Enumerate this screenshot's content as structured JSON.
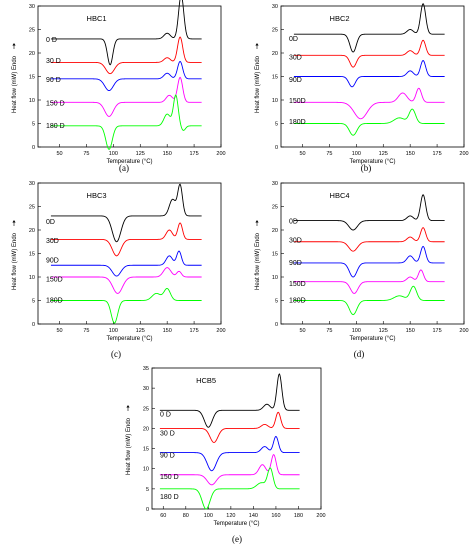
{
  "chart_data": [
    {
      "type": "line",
      "caption": "(a)",
      "title": "HBC1",
      "xlabel": "Temperature (°C)",
      "ylabel": "Heat flow (mW) Endo",
      "xlim": [
        30,
        200
      ],
      "ylim": [
        0,
        30
      ],
      "xticks": [
        "50",
        "75",
        "100",
        "125",
        "150",
        "175",
        "200"
      ],
      "yticks": [
        "0",
        "5",
        "10",
        "15",
        "20",
        "25",
        "30"
      ],
      "series": [
        {
          "name": "0 D",
          "color": "#000000",
          "label_y": 22.8,
          "baseline": 23,
          "peaks": [
            [
              97,
              -5.5,
              2.5
            ],
            [
              150,
              1.2,
              3
            ],
            [
              163,
              9.3,
              2.4
            ]
          ],
          "xrange": [
            42,
            182
          ]
        },
        {
          "name": "30 D",
          "color": "#ff0000",
          "label_y": 18.3,
          "baseline": 18,
          "peaks": [
            [
              97,
              -2.4,
              4
            ],
            [
              150,
              1.0,
              3
            ],
            [
              162,
              5.4,
              2.4
            ]
          ],
          "xrange": [
            42,
            182
          ]
        },
        {
          "name": "90 D",
          "color": "#0000ff",
          "label_y": 14.3,
          "baseline": 14.5,
          "peaks": [
            [
              96,
              -2.5,
              4
            ],
            [
              150,
              1.2,
              3
            ],
            [
              162,
              3.7,
              2.4
            ]
          ],
          "xrange": [
            42,
            182
          ]
        },
        {
          "name": "150 D",
          "color": "#ff00ff",
          "label_y": 9.3,
          "baseline": 9.5,
          "peaks": [
            [
              96,
              -3,
              4
            ],
            [
              152,
              1.5,
              3
            ],
            [
              162,
              5.3,
              2.4
            ]
          ],
          "xrange": [
            42,
            182
          ]
        },
        {
          "name": "180 D",
          "color": "#00ff00",
          "label_y": 4.5,
          "baseline": 4.5,
          "peaks": [
            [
              96,
              -5,
              3
            ],
            [
              150,
              2.5,
              3
            ],
            [
              158,
              6.5,
              2.2
            ],
            [
              165,
              -1,
              2
            ]
          ],
          "xrange": [
            42,
            182
          ]
        }
      ]
    },
    {
      "type": "line",
      "caption": "(b)",
      "title": "HBC2",
      "xlabel": "Temperature (°C)",
      "ylabel": "Heat flow (mW) Endo",
      "xlim": [
        30,
        200
      ],
      "ylim": [
        0,
        30
      ],
      "xticks": [
        "50",
        "75",
        "100",
        "125",
        "150",
        "175",
        "200"
      ],
      "yticks": [
        "0",
        "5",
        "10",
        "15",
        "20",
        "25",
        "30"
      ],
      "series": [
        {
          "name": "0D",
          "color": "#000000",
          "label_y": 23,
          "baseline": 24,
          "peaks": [
            [
              97,
              -3.8,
              3
            ],
            [
              150,
              1.0,
              3
            ],
            [
              162,
              6.5,
              2.4
            ]
          ],
          "xrange": [
            42,
            182
          ]
        },
        {
          "name": "30D",
          "color": "#ff0000",
          "label_y": 19,
          "baseline": 19.5,
          "peaks": [
            [
              97,
              -2.5,
              3
            ],
            [
              150,
              1.0,
              3
            ],
            [
              162,
              3.2,
              2.4
            ]
          ],
          "xrange": [
            42,
            182
          ]
        },
        {
          "name": "90D",
          "color": "#0000ff",
          "label_y": 14.3,
          "baseline": 15,
          "peaks": [
            [
              96,
              -2.2,
              3
            ],
            [
              150,
              1.2,
              3
            ],
            [
              162,
              3.4,
              2.4
            ]
          ],
          "xrange": [
            42,
            182
          ]
        },
        {
          "name": "150D",
          "color": "#ff00ff",
          "label_y": 9.8,
          "baseline": 9.5,
          "peaks": [
            [
              104,
              -3.5,
              6
            ],
            [
              143,
              2.0,
              4
            ],
            [
              158,
              3.0,
              2.5
            ]
          ],
          "xrange": [
            42,
            182
          ]
        },
        {
          "name": "180D",
          "color": "#00ff00",
          "label_y": 5.3,
          "baseline": 5,
          "peaks": [
            [
              97,
              -2.5,
              3.5
            ],
            [
              140,
              1.2,
              5
            ],
            [
              152,
              3.0,
              3
            ]
          ],
          "xrange": [
            42,
            182
          ]
        }
      ]
    },
    {
      "type": "line",
      "caption": "(c)",
      "title": "HBC3",
      "xlabel": "Temperature (°C)",
      "ylabel": "Heat flow (mW) Endo",
      "xlim": [
        30,
        200
      ],
      "ylim": [
        0,
        30
      ],
      "xticks": [
        "50",
        "75",
        "100",
        "125",
        "150",
        "175",
        "200"
      ],
      "yticks": [
        "0",
        "5",
        "10",
        "15",
        "20",
        "25",
        "30"
      ],
      "series": [
        {
          "name": "0D",
          "color": "#000000",
          "label_y": 21.7,
          "baseline": 23,
          "peaks": [
            [
              103,
              -5.5,
              4
            ],
            [
              155,
              3.5,
              3
            ],
            [
              162,
              6.5,
              2.2
            ]
          ],
          "xrange": [
            42,
            182
          ]
        },
        {
          "name": "30D",
          "color": "#ff0000",
          "label_y": 17.7,
          "baseline": 18,
          "peaks": [
            [
              103,
              -3.5,
              4
            ],
            [
              152,
              2.0,
              3
            ],
            [
              162,
              3.5,
              2.2
            ]
          ],
          "xrange": [
            42,
            182
          ]
        },
        {
          "name": "90D",
          "color": "#0000ff",
          "label_y": 13.5,
          "baseline": 12.5,
          "peaks": [
            [
              103,
              -2.3,
              4
            ],
            [
              152,
              2.0,
              3
            ],
            [
              161,
              3.0,
              2.2
            ]
          ],
          "xrange": [
            42,
            182
          ]
        },
        {
          "name": "150D",
          "color": "#ff00ff",
          "label_y": 9.5,
          "baseline": 10,
          "peaks": [
            [
              104,
              -3.5,
              4.5
            ],
            [
              150,
              2.0,
              3.5
            ],
            [
              161,
              1.2,
              2.2
            ]
          ],
          "xrange": [
            42,
            182
          ]
        },
        {
          "name": "180D",
          "color": "#00ff00",
          "label_y": 5,
          "baseline": 5,
          "peaks": [
            [
              101,
              -4.8,
              3
            ],
            [
              140,
              1.5,
              4
            ],
            [
              150,
              2.5,
              3
            ]
          ],
          "xrange": [
            42,
            182
          ]
        }
      ]
    },
    {
      "type": "line",
      "caption": "(d)",
      "title": "HBC4",
      "xlabel": "Temperature (°C)",
      "ylabel": "Heat flow (mW) Endo",
      "xlim": [
        30,
        200
      ],
      "ylim": [
        0,
        30
      ],
      "xticks": [
        "50",
        "75",
        "100",
        "125",
        "150",
        "175",
        "200"
      ],
      "yticks": [
        "0",
        "5",
        "10",
        "15",
        "20",
        "25",
        "30"
      ],
      "series": [
        {
          "name": "0D",
          "color": "#000000",
          "label_y": 21.8,
          "baseline": 22,
          "peaks": [
            [
              97,
              -2.0,
              4
            ],
            [
              150,
              1.0,
              3
            ],
            [
              162,
              5.5,
              2.4
            ]
          ],
          "xrange": [
            42,
            182
          ]
        },
        {
          "name": "30D",
          "color": "#ff0000",
          "label_y": 17.8,
          "baseline": 17.5,
          "peaks": [
            [
              97,
              -2.0,
              4
            ],
            [
              150,
              1.0,
              3
            ],
            [
              162,
              3.0,
              2.4
            ]
          ],
          "xrange": [
            42,
            182
          ]
        },
        {
          "name": "90D",
          "color": "#0000ff",
          "label_y": 13,
          "baseline": 13,
          "peaks": [
            [
              97,
              -3.0,
              3.5
            ],
            [
              150,
              1.5,
              3
            ],
            [
              162,
              3.5,
              2.4
            ]
          ],
          "xrange": [
            42,
            182
          ]
        },
        {
          "name": "150D",
          "color": "#ff00ff",
          "label_y": 8.5,
          "baseline": 9,
          "peaks": [
            [
              98,
              -2.5,
              3.5
            ],
            [
              150,
              1.0,
              3
            ],
            [
              160,
              2.5,
              2.4
            ]
          ],
          "xrange": [
            42,
            182
          ]
        },
        {
          "name": "180D",
          "color": "#00ff00",
          "label_y": 5,
          "baseline": 5,
          "peaks": [
            [
              97,
              -3.0,
              3.5
            ],
            [
              140,
              1.0,
              5
            ],
            [
              153,
              3.0,
              3
            ]
          ],
          "xrange": [
            42,
            182
          ]
        }
      ]
    },
    {
      "type": "line",
      "caption": "(e)",
      "title": "HCB5",
      "xlabel": "Temperature (°C)",
      "ylabel": "Heat flow (mW) Endo",
      "xlim": [
        50,
        200
      ],
      "ylim": [
        0,
        35
      ],
      "xticks": [
        "60",
        "80",
        "100",
        "120",
        "140",
        "160",
        "180",
        "200"
      ],
      "yticks": [
        "0",
        "5",
        "10",
        "15",
        "20",
        "25",
        "30",
        "35"
      ],
      "series": [
        {
          "name": "0 D",
          "color": "#000000",
          "label_y": 23.5,
          "baseline": 24.5,
          "peaks": [
            [
              100,
              -4.2,
              3.5
            ],
            [
              152,
              1.5,
              3
            ],
            [
              163,
              9,
              2.2
            ]
          ],
          "xrange": [
            57,
            181
          ]
        },
        {
          "name": "30 D",
          "color": "#ff0000",
          "label_y": 18.7,
          "baseline": 20,
          "peaks": [
            [
              105,
              -3.5,
              3.5
            ],
            [
              150,
              1.0,
              3
            ],
            [
              162,
              4,
              2.2
            ]
          ],
          "xrange": [
            57,
            181
          ]
        },
        {
          "name": "90 D",
          "color": "#0000ff",
          "label_y": 13.3,
          "baseline": 14,
          "peaks": [
            [
              103,
              -4.5,
              4
            ],
            [
              150,
              1.5,
              3
            ],
            [
              160,
              4,
              2.2
            ]
          ],
          "xrange": [
            57,
            181
          ]
        },
        {
          "name": "150 D",
          "color": "#ff00ff",
          "label_y": 8,
          "baseline": 8.5,
          "peaks": [
            [
              103,
              -2.5,
              4
            ],
            [
              148,
              2.5,
              3
            ],
            [
              158,
              5,
              2.2
            ]
          ],
          "xrange": [
            57,
            181
          ]
        },
        {
          "name": "180 D",
          "color": "#00ff00",
          "label_y": 3,
          "baseline": 5,
          "peaks": [
            [
              98,
              -5.0,
              3.5
            ],
            [
              147,
              1.5,
              4
            ],
            [
              155,
              5,
              2.4
            ]
          ],
          "xrange": [
            57,
            181
          ]
        }
      ]
    }
  ]
}
